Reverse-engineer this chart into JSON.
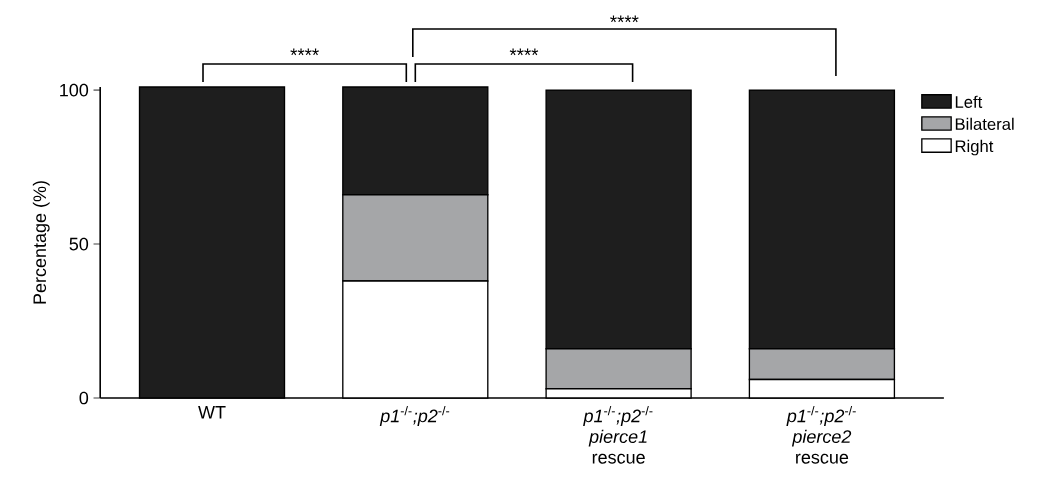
{
  "chart_data": {
    "type": "bar",
    "stacked": true,
    "ylabel": "Percentage (%)",
    "categories": [
      "WT",
      "*p1*$^{-/-}$*;p2*$^{-/-}$",
      "*p1*$^{-/-}$*;p2*$^{-/-}$ *pierce1* rescue",
      "*p1*$^{-/-}$*;p2*$^{-/-}$ *pierce2* rescue"
    ],
    "series": [
      {
        "name": "Right",
        "color": "#ffffff",
        "values": [
          0,
          38,
          3,
          6
        ]
      },
      {
        "name": "Bilateral",
        "color": "#a5a6a8",
        "values": [
          0,
          28,
          13,
          10
        ]
      },
      {
        "name": "Left",
        "color": "#1e1e1e",
        "values": [
          101,
          35,
          84,
          84
        ]
      }
    ],
    "ylim": [
      0,
      101
    ],
    "yticks": [
      0,
      50,
      100
    ],
    "legend": "top right",
    "annotations": [
      "****",
      "****",
      "****"
    ]
  }
}
